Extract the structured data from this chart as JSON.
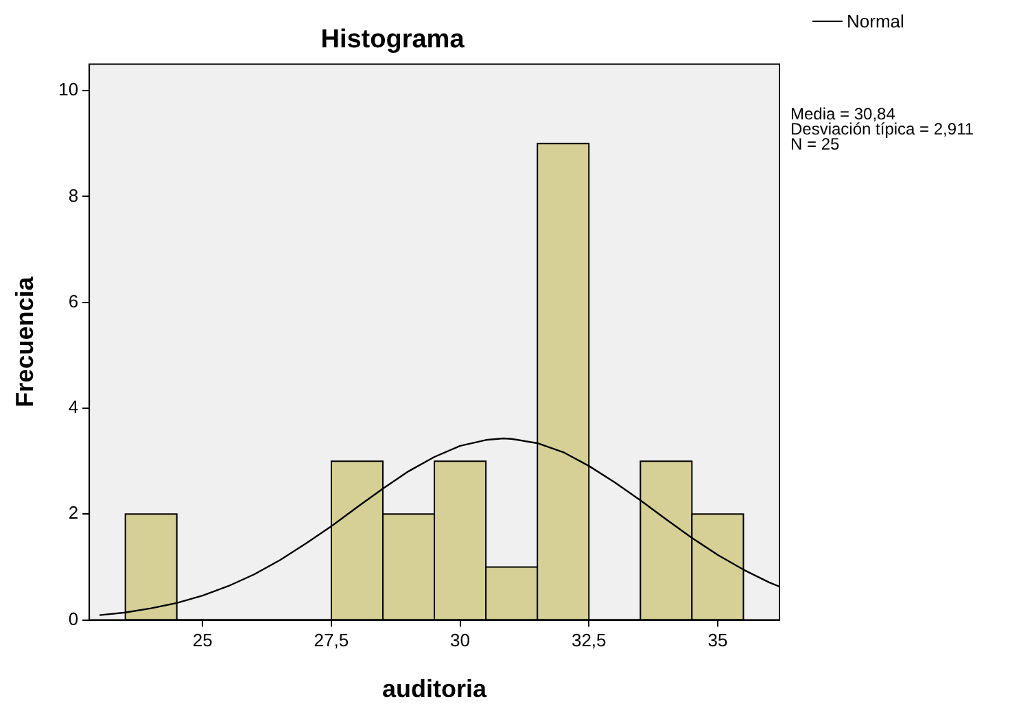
{
  "chart_data": {
    "type": "histogram",
    "title": "Histograma",
    "xlabel": "auditoria",
    "ylabel": "Frecuencia",
    "bins": [
      23.5,
      24.5,
      25.5,
      26.5,
      27.5,
      28.5,
      29.5,
      30.5,
      31.5,
      32.5,
      33.5,
      34.5,
      35.5
    ],
    "values": [
      2,
      0,
      0,
      0,
      3,
      2,
      3,
      1,
      9,
      0,
      3,
      2
    ],
    "color": "#d6cf96",
    "series": [
      {
        "type": "line",
        "name": "Normal",
        "color": "#000000",
        "x": [
          23,
          23.5,
          24,
          24.5,
          25,
          25.5,
          26,
          26.5,
          27,
          27.5,
          28,
          28.5,
          29,
          29.5,
          30,
          30.5,
          30.84,
          31,
          31.5,
          32,
          32.5,
          33,
          33.5,
          34,
          34.5,
          35,
          35.5,
          36,
          36.2
        ],
        "values": [
          0.09,
          0.14,
          0.22,
          0.32,
          0.46,
          0.64,
          0.86,
          1.13,
          1.44,
          1.77,
          2.13,
          2.48,
          2.81,
          3.08,
          3.29,
          3.4,
          3.43,
          3.42,
          3.34,
          3.17,
          2.91,
          2.6,
          2.26,
          1.9,
          1.55,
          1.23,
          0.95,
          0.71,
          0.63
        ]
      }
    ],
    "xlim": [
      22.8,
      36.2
    ],
    "xticks": [
      25,
      {
        "value": 27.5,
        "label": "27,5"
      },
      30,
      {
        "value": 32.5,
        "label": "32,5"
      },
      35
    ],
    "ylim": [
      0,
      10.5
    ],
    "yticks": [
      0,
      2,
      4,
      6,
      8,
      10
    ],
    "grid": false,
    "legend": "top right",
    "marker": "none",
    "annotations": [
      "Media = 30,84",
      "Desviación típica = 2,911",
      "N = 25"
    ]
  }
}
